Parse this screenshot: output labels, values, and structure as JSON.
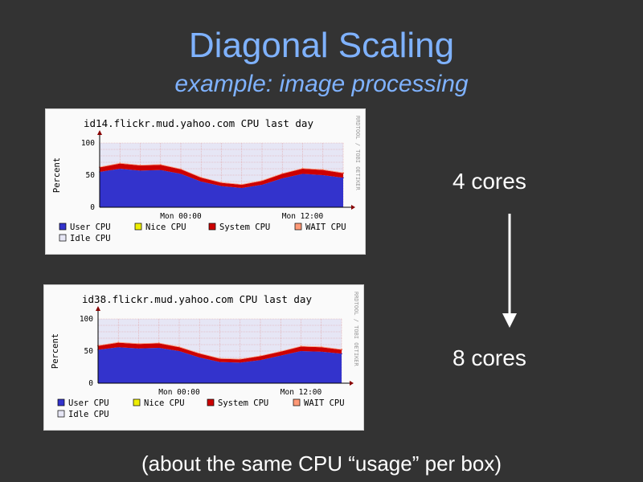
{
  "slide": {
    "title": "Diagonal Scaling",
    "subtitle": "example: image processing",
    "label_top": "4 cores",
    "label_bottom": "8 cores",
    "footer": "(about the same CPU “usage” per box)"
  },
  "colors": {
    "background": "#333333",
    "title": "#7fb2ff",
    "user_cpu": "#3333cc",
    "idle_cpu": "#e6e6f5",
    "nice_cpu": "#eeee00",
    "system_cpu": "#cc0000",
    "wait_cpu": "#ff9977"
  },
  "chart_data": [
    {
      "type": "area",
      "title": "id14.flickr.mud.yahoo.com CPU last day",
      "ylabel": "Percent",
      "watermark": "RRDTOOL / TOBI OETIKER",
      "ylim": [
        0,
        100
      ],
      "yticks": [
        "0",
        "50",
        "100"
      ],
      "xlabels": [
        "Mon 00:00",
        "Mon 12:00"
      ],
      "legend": [
        "User CPU",
        "Nice CPU",
        "System CPU",
        "WAIT CPU",
        "Idle CPU"
      ],
      "grid": true,
      "hours": [
        0,
        2,
        4,
        6,
        8,
        10,
        12,
        14,
        16,
        18,
        20,
        22,
        24
      ],
      "series": [
        {
          "name": "User CPU",
          "values": [
            55,
            60,
            57,
            58,
            52,
            40,
            33,
            30,
            35,
            45,
            52,
            50,
            46
          ]
        },
        {
          "name": "System CPU",
          "values": [
            7,
            8,
            8,
            8,
            7,
            6,
            5,
            5,
            6,
            7,
            8,
            8,
            7
          ]
        },
        {
          "name": "WAIT CPU",
          "values": [
            1,
            1,
            1,
            1,
            1,
            1,
            1,
            1,
            1,
            1,
            1,
            1,
            1
          ]
        }
      ]
    },
    {
      "type": "area",
      "title": "id38.flickr.mud.yahoo.com CPU last day",
      "ylabel": "Percent",
      "watermark": "RRDTOOL / TOBI OETIKER",
      "ylim": [
        0,
        100
      ],
      "yticks": [
        "0",
        "50",
        "100"
      ],
      "xlabels": [
        "Mon 00:00",
        "Mon 12:00"
      ],
      "legend": [
        "User CPU",
        "Nice CPU",
        "System CPU",
        "WAIT CPU",
        "Idle CPU"
      ],
      "grid": true,
      "hours": [
        0,
        2,
        4,
        6,
        8,
        10,
        12,
        14,
        16,
        18,
        20,
        22,
        24
      ],
      "series": [
        {
          "name": "User CPU",
          "values": [
            52,
            56,
            54,
            55,
            50,
            40,
            33,
            32,
            36,
            43,
            50,
            49,
            46
          ]
        },
        {
          "name": "System CPU",
          "values": [
            6,
            7,
            7,
            7,
            6,
            6,
            5,
            5,
            6,
            6,
            7,
            7,
            6
          ]
        },
        {
          "name": "WAIT CPU",
          "values": [
            1,
            1,
            1,
            1,
            1,
            1,
            1,
            1,
            1,
            1,
            1,
            1,
            1
          ]
        }
      ]
    }
  ]
}
